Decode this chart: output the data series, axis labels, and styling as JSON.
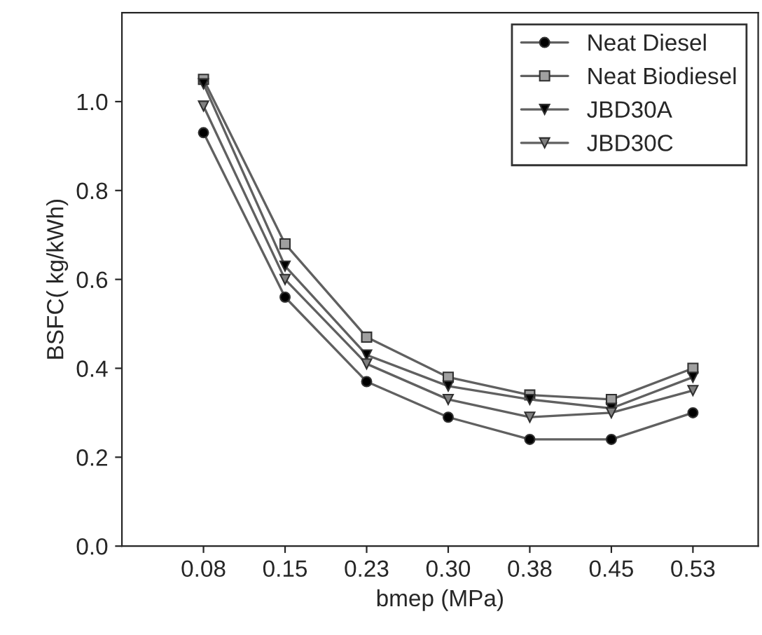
{
  "chart_data": {
    "type": "line",
    "xlabel": "bmep (MPa)",
    "ylabel": "BSFC( kg/kWh)",
    "categories": [
      "0.08",
      "0.15",
      "0.23",
      "0.30",
      "0.38",
      "0.45",
      "0.53"
    ],
    "series": [
      {
        "name": "Neat Diesel",
        "color": "#000000",
        "marker": "circle",
        "values": [
          0.93,
          0.56,
          0.37,
          0.29,
          0.24,
          0.24,
          0.3
        ]
      },
      {
        "name": "Neat Biodiesel",
        "color": "#a0a0a0",
        "marker": "square",
        "values": [
          1.05,
          0.68,
          0.47,
          0.38,
          0.34,
          0.33,
          0.4
        ]
      },
      {
        "name": "JBD30A",
        "color": "#000000",
        "marker": "triangle",
        "values": [
          1.04,
          0.63,
          0.43,
          0.36,
          0.33,
          0.31,
          0.38
        ]
      },
      {
        "name": "JBD30C",
        "color": "#808080",
        "marker": "triangle",
        "values": [
          0.99,
          0.6,
          0.41,
          0.33,
          0.29,
          0.3,
          0.35
        ]
      }
    ],
    "ylim": [
      0,
      1.2
    ],
    "yticks": [
      {
        "value": 0,
        "label": "0.0"
      },
      {
        "value": 0.2,
        "label": "0.2"
      },
      {
        "value": 0.4,
        "label": "0.4"
      },
      {
        "value": 0.6,
        "label": "0.6"
      },
      {
        "value": 0.8,
        "label": "0.8"
      },
      {
        "value": 1.0,
        "label": "1.0"
      }
    ],
    "grid": false,
    "legend": "top right",
    "line_style": "solid"
  }
}
